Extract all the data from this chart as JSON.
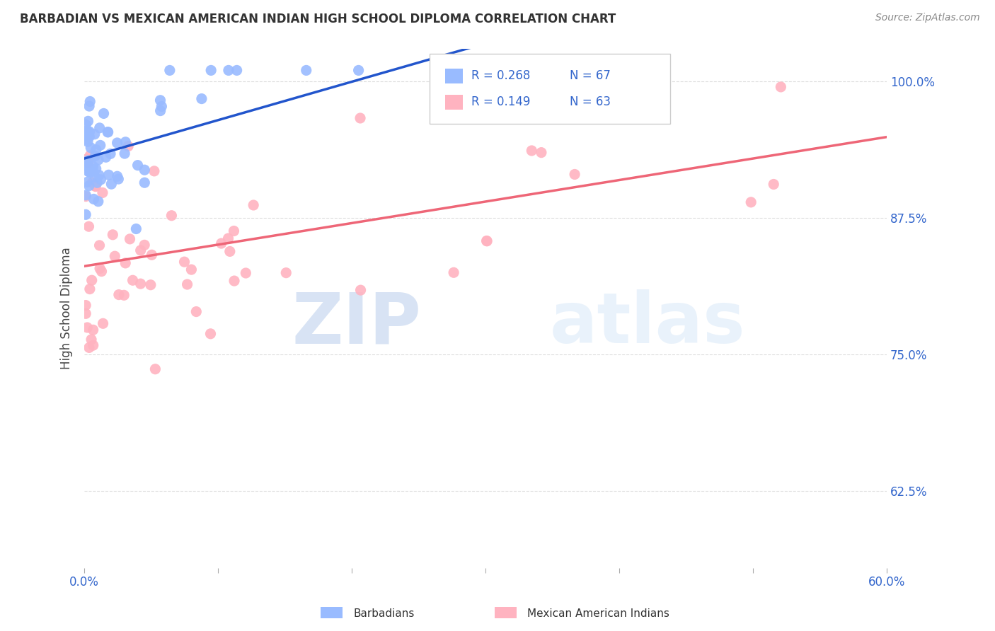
{
  "title": "BARBADIAN VS MEXICAN AMERICAN INDIAN HIGH SCHOOL DIPLOMA CORRELATION CHART",
  "source": "Source: ZipAtlas.com",
  "ylabel": "High School Diploma",
  "ytick_labels": [
    "100.0%",
    "87.5%",
    "75.0%",
    "62.5%"
  ],
  "ytick_values": [
    1.0,
    0.875,
    0.75,
    0.625
  ],
  "xmin": 0.0,
  "xmax": 0.6,
  "ymin": 0.555,
  "ymax": 1.03,
  "legend_r1": "R = 0.268",
  "legend_n1": "N = 67",
  "legend_r2": "R = 0.149",
  "legend_n2": "N = 63",
  "color_blue_fill": "#99BBFF",
  "color_pink_fill": "#FFB3C0",
  "color_blue_line": "#2255CC",
  "color_pink_line": "#EE6677",
  "color_blue_text": "#3366CC",
  "color_pink_text": "#EE6677",
  "watermark_zip": "ZIP",
  "watermark_atlas": "atlas",
  "legend_label_1": "Barbadians",
  "legend_label_2": "Mexican American Indians"
}
